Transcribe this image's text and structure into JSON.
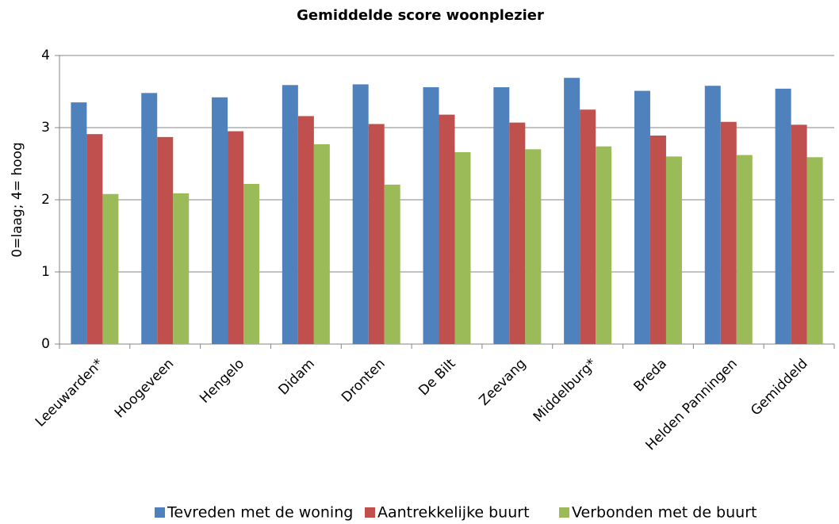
{
  "chart_data": {
    "type": "bar",
    "title": "Gemiddelde score woonplezier",
    "y_label": "0=laag; 4= hoog",
    "categories": [
      "Leeuwarden*",
      "Hoogeveen",
      "Hengelo",
      "Didam",
      "Dronten",
      "De Bilt",
      "Zeevang",
      "Middelburg*",
      "Breda",
      "Helden Panningen",
      "Gemiddeld"
    ],
    "series": [
      {
        "name": "Tevreden met de woning",
        "color": "#4f81bd",
        "values": [
          3.35,
          3.48,
          3.42,
          3.59,
          3.6,
          3.56,
          3.56,
          3.69,
          3.51,
          3.58,
          3.54
        ]
      },
      {
        "name": "Aantrekkelijke buurt",
        "color": "#c0504d",
        "values": [
          2.91,
          2.87,
          2.95,
          3.16,
          3.05,
          3.18,
          3.07,
          3.25,
          2.89,
          3.08,
          3.04
        ]
      },
      {
        "name": "Verbonden met de buurt",
        "color": "#9bbb59",
        "values": [
          2.08,
          2.09,
          2.22,
          2.77,
          2.21,
          2.66,
          2.7,
          2.74,
          2.6,
          2.62,
          2.59
        ]
      }
    ],
    "ylim": [
      0,
      4
    ],
    "yticks": [
      0,
      1,
      2,
      3,
      4
    ],
    "grid": true
  }
}
